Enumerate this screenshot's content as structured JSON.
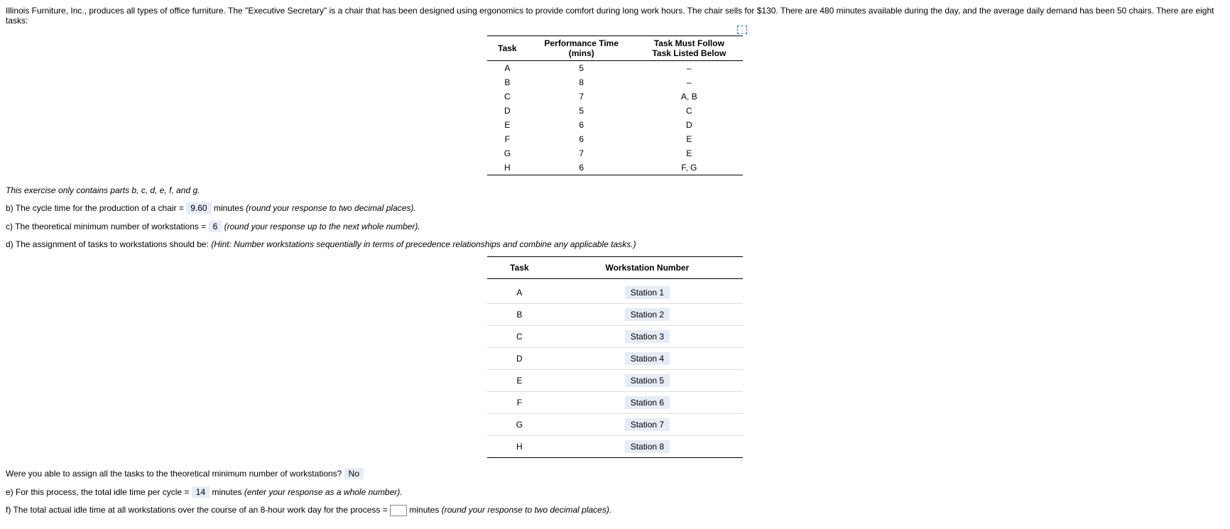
{
  "intro": "Illinois Furniture, Inc., produces all types of office furniture. The \"Executive Secretary\" is a chair that has been designed using ergonomics to provide comfort during long work hours. The chair sells for $130. There are 480 minutes available during the day, and the average daily demand has been 50 chairs. There are eight tasks:",
  "task_table": {
    "headers": {
      "c1": "Task",
      "c2_l1": "Performance Time",
      "c2_l2": "(mins)",
      "c3_l1": "Task Must Follow",
      "c3_l2": "Task Listed Below"
    },
    "rows": [
      {
        "task": "A",
        "time": "5",
        "follow": "–"
      },
      {
        "task": "B",
        "time": "8",
        "follow": "–"
      },
      {
        "task": "C",
        "time": "7",
        "follow": "A, B"
      },
      {
        "task": "D",
        "time": "5",
        "follow": "C"
      },
      {
        "task": "E",
        "time": "6",
        "follow": "D"
      },
      {
        "task": "F",
        "time": "6",
        "follow": "E"
      },
      {
        "task": "G",
        "time": "7",
        "follow": "E"
      },
      {
        "task": "H",
        "time": "6",
        "follow": "F, G"
      }
    ]
  },
  "note_parts": "This exercise only contains parts b, c, d, e, f, and g.",
  "b": {
    "pre": "b) The cycle time for the production of a chair = ",
    "ans": "9.60",
    "post": " minutes ",
    "hint": "(round your response to two decimal places)."
  },
  "c": {
    "pre": "c) The theoretical minimum number of workstations = ",
    "ans": "6",
    "post": " ",
    "hint": "(round your response up to the next whole number)."
  },
  "d": {
    "pre": "d) The assignment of tasks to workstations should be: ",
    "hint": "(Hint: Number workstations sequentially in terms of precedence relationships and combine any applicable tasks.)"
  },
  "ws_table": {
    "headers": {
      "c1": "Task",
      "c2": "Workstation Number"
    },
    "rows": [
      {
        "task": "A",
        "ws": "Station 1"
      },
      {
        "task": "B",
        "ws": "Station 2"
      },
      {
        "task": "C",
        "ws": "Station 3"
      },
      {
        "task": "D",
        "ws": "Station 4"
      },
      {
        "task": "E",
        "ws": "Station 5"
      },
      {
        "task": "F",
        "ws": "Station 6"
      },
      {
        "task": "G",
        "ws": "Station 7"
      },
      {
        "task": "H",
        "ws": "Station 8"
      }
    ]
  },
  "assign_q": {
    "pre": "Were you able to assign all the tasks to the theoretical minimum number of workstations? ",
    "ans": "No"
  },
  "e": {
    "pre": "e) For this process, the total idle time per cycle = ",
    "ans": "14",
    "post": " minutes ",
    "hint": "(enter your response as a whole number)."
  },
  "f": {
    "pre": "f) The total actual idle time at all workstations over the course of an 8-hour work day for the process = ",
    "post": " minutes ",
    "hint": "(round your response to two decimal places)."
  }
}
